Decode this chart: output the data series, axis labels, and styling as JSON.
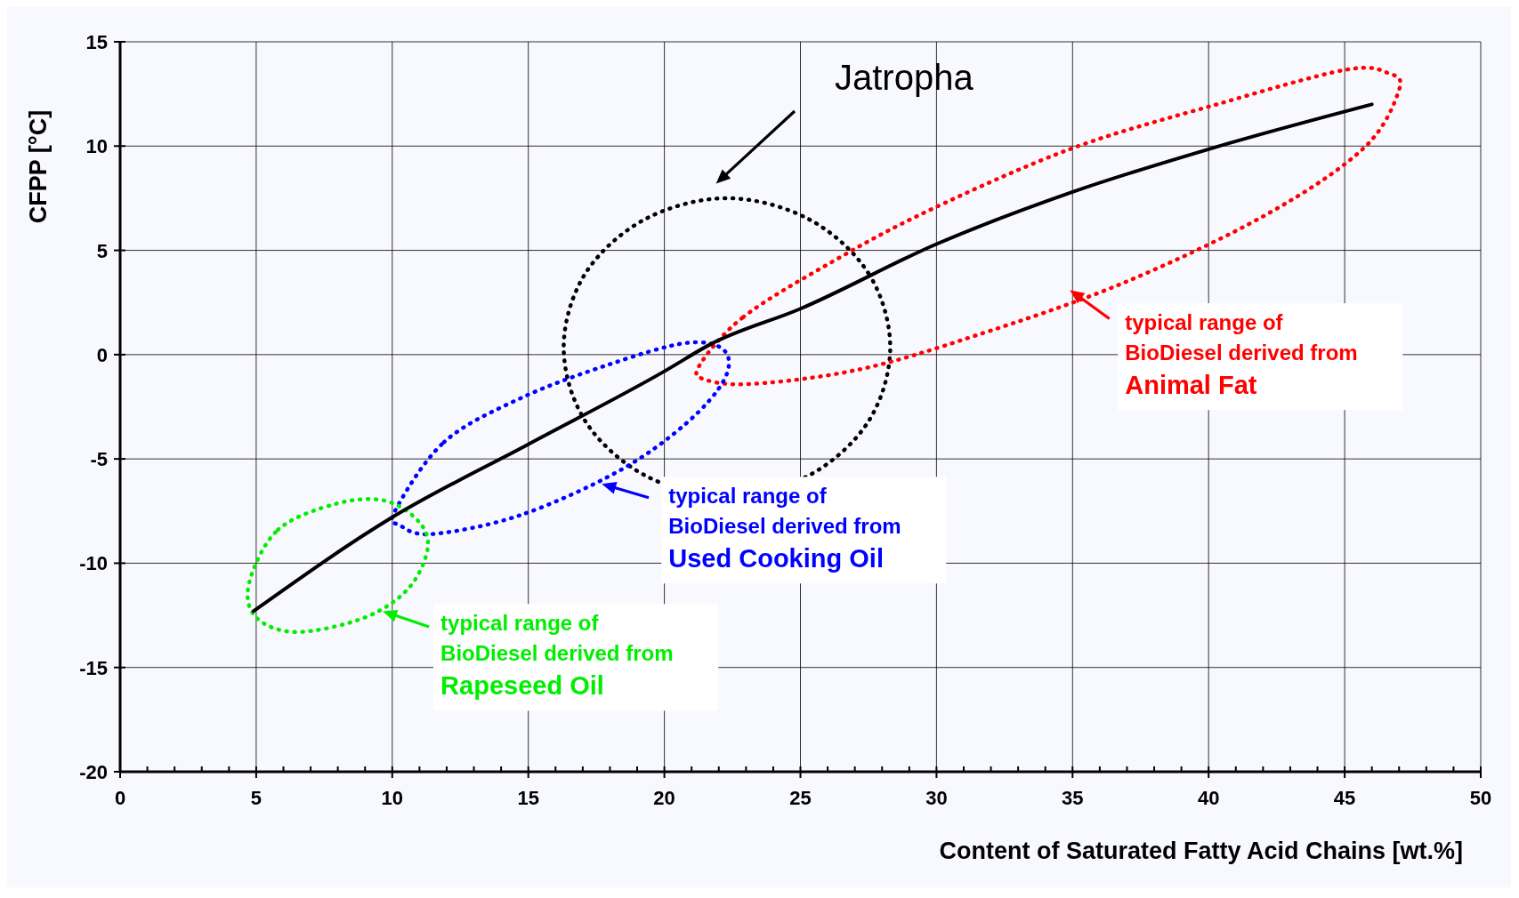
{
  "chart_data": {
    "type": "line",
    "xlabel": "Content of Saturated Fatty Acid Chains [wt.%]",
    "ylabel": "CFPP [°C]",
    "xlim": [
      0,
      50
    ],
    "ylim": [
      -20,
      15
    ],
    "xticks": [
      0,
      {
        "value": 1,
        "label": null
      },
      {
        "value": 2,
        "label": null
      },
      {
        "value": 3,
        "label": null
      },
      {
        "value": 4,
        "label": null
      },
      5,
      {
        "value": 6,
        "label": null
      },
      {
        "value": 7,
        "label": null
      },
      {
        "value": 8,
        "label": null
      },
      {
        "value": 9,
        "label": null
      },
      10,
      {
        "value": 11,
        "label": null
      },
      {
        "value": 12,
        "label": null
      },
      {
        "value": 13,
        "label": null
      },
      {
        "value": 14,
        "label": null
      },
      15,
      {
        "value": 16,
        "label": null
      },
      {
        "value": 17,
        "label": null
      },
      {
        "value": 18,
        "label": null
      },
      {
        "value": 19,
        "label": null
      },
      20,
      {
        "value": 21,
        "label": null
      },
      {
        "value": 22,
        "label": null
      },
      {
        "value": 23,
        "label": null
      },
      {
        "value": 24,
        "label": null
      },
      25,
      {
        "value": 26,
        "label": null
      },
      {
        "value": 27,
        "label": null
      },
      {
        "value": 28,
        "label": null
      },
      {
        "value": 29,
        "label": null
      },
      30,
      {
        "value": 31,
        "label": null
      },
      {
        "value": 32,
        "label": null
      },
      {
        "value": 33,
        "label": null
      },
      {
        "value": 34,
        "label": null
      },
      35,
      {
        "value": 36,
        "label": null
      },
      {
        "value": 37,
        "label": null
      },
      {
        "value": 38,
        "label": null
      },
      {
        "value": 39,
        "label": null
      },
      40,
      {
        "value": 41,
        "label": null
      },
      {
        "value": 42,
        "label": null
      },
      {
        "value": 43,
        "label": null
      },
      {
        "value": 44,
        "label": null
      },
      45,
      {
        "value": 46,
        "label": null
      },
      {
        "value": 47,
        "label": null
      },
      {
        "value": 48,
        "label": null
      },
      {
        "value": 49,
        "label": null
      },
      50
    ],
    "yticks": [
      -20,
      -15,
      -10,
      -5,
      0,
      5,
      10,
      15
    ],
    "grid": true,
    "series": [
      {
        "color": "#000000",
        "line_style": "solid",
        "x": [
          4.9,
          10,
          15,
          20,
          21.7,
          25,
          30,
          35,
          40,
          46
        ],
        "values": [
          -12.3,
          -7.8,
          -4.3,
          -0.8,
          0.5,
          2.2,
          5.3,
          7.8,
          9.85,
          12.0
        ]
      }
    ],
    "annotations": [
      "Jatropha",
      "typical range of\nBioDiesel derived from\nAnimal Fat",
      "typical range of\nBioDiesel derived from\nUsed Cooking Oil",
      "typical range of\nBioDiesel derived from\nRapeseed Oil"
    ]
  }
}
